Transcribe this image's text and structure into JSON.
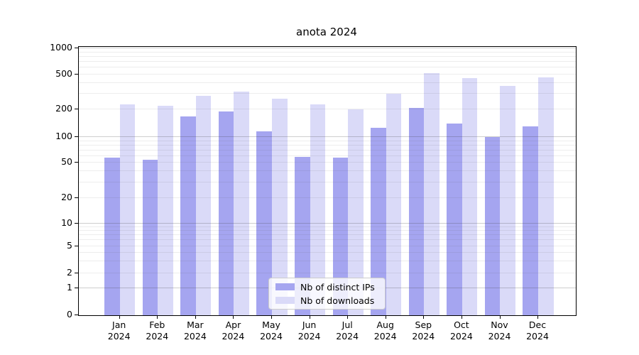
{
  "chart_data": {
    "type": "bar",
    "title": "anota 2024",
    "categories": [
      {
        "month": "Jan",
        "year": "2024"
      },
      {
        "month": "Feb",
        "year": "2024"
      },
      {
        "month": "Mar",
        "year": "2024"
      },
      {
        "month": "Apr",
        "year": "2024"
      },
      {
        "month": "May",
        "year": "2024"
      },
      {
        "month": "Jun",
        "year": "2024"
      },
      {
        "month": "Jul",
        "year": "2024"
      },
      {
        "month": "Aug",
        "year": "2024"
      },
      {
        "month": "Sep",
        "year": "2024"
      },
      {
        "month": "Oct",
        "year": "2024"
      },
      {
        "month": "Nov",
        "year": "2024"
      },
      {
        "month": "Dec",
        "year": "2024"
      }
    ],
    "series": [
      {
        "name": "Nb of distinct IPs",
        "color": "#a5a5f0",
        "values": [
          57,
          54,
          168,
          187,
          115,
          59,
          58,
          127,
          206,
          139,
          100,
          131
        ]
      },
      {
        "name": "Nb of downloads",
        "color": "#dadaf8",
        "values": [
          228,
          220,
          285,
          318,
          263,
          228,
          198,
          300,
          515,
          450,
          370,
          464
        ]
      }
    ],
    "y_axis": {
      "scale": "log-like with linear zero region",
      "ticks": [
        0,
        1,
        2,
        5,
        10,
        20,
        50,
        100,
        200,
        500,
        1000
      ],
      "ylim": [
        0,
        1000
      ]
    },
    "legend": {
      "position": "lower center"
    },
    "grid": "on"
  }
}
